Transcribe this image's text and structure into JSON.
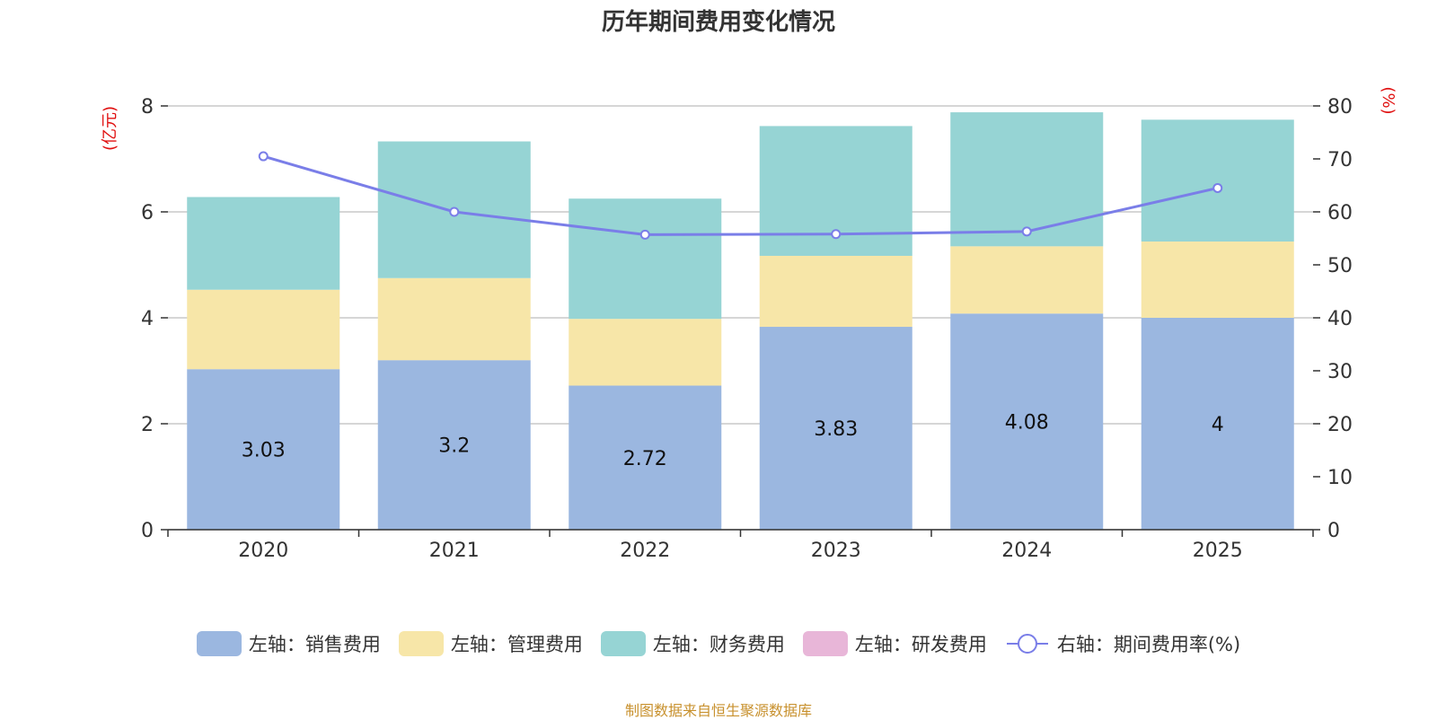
{
  "source": "制图数据来自恒生聚源数据库",
  "chart_data": {
    "type": "bar",
    "title": "历年期间费用变化情况",
    "categories": [
      "2020",
      "2021",
      "2022",
      "2023",
      "2024",
      "2025"
    ],
    "left_axis": {
      "label": "(亿元)",
      "range": [
        0,
        8
      ],
      "ticks": [
        "0",
        "2",
        "4",
        "6",
        "8"
      ]
    },
    "right_axis": {
      "label": "(%)",
      "range": [
        0,
        80
      ],
      "ticks": [
        "0",
        "10",
        "20",
        "30",
        "40",
        "50",
        "60",
        "70",
        "80"
      ]
    },
    "series": [
      {
        "name": "左轴：销售费用",
        "type": "bar",
        "stack": true,
        "axis": "left",
        "color": "#9bb7e0",
        "values": [
          3.03,
          3.2,
          2.72,
          3.83,
          4.08,
          4.0
        ],
        "labels": [
          "3.03",
          "3.2",
          "2.72",
          "3.83",
          "4.08",
          "4"
        ]
      },
      {
        "name": "左轴：管理费用",
        "type": "bar",
        "stack": true,
        "axis": "left",
        "color": "#f7e6a8",
        "values": [
          1.5,
          1.55,
          1.26,
          1.34,
          1.27,
          1.44
        ]
      },
      {
        "name": "左轴：财务费用",
        "type": "bar",
        "stack": true,
        "axis": "left",
        "color": "#96d4d4",
        "values": [
          1.75,
          2.58,
          2.27,
          2.45,
          2.53,
          2.3
        ]
      },
      {
        "name": "左轴：研发费用",
        "type": "bar",
        "stack": true,
        "axis": "left",
        "color": "#e8b6d8",
        "values": [
          0,
          0,
          0,
          0,
          0,
          0
        ]
      },
      {
        "name": "右轴：期间费用率(%)",
        "type": "line",
        "axis": "right",
        "color": "#7a7ee8",
        "values": [
          70.5,
          60.0,
          55.7,
          55.8,
          56.3,
          64.5
        ]
      }
    ],
    "grid": true,
    "legend_position": "bottom"
  }
}
